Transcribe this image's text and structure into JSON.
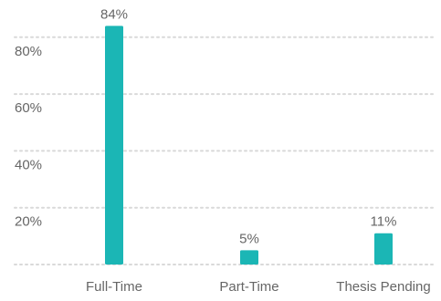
{
  "chart_data": {
    "type": "bar",
    "categories": [
      "Full-Time",
      "Part-Time",
      "Thesis Pending"
    ],
    "values": [
      84,
      5,
      11
    ],
    "value_labels": [
      "84%",
      "5%",
      "11%"
    ],
    "yticks": [
      20,
      40,
      60,
      80
    ],
    "ytick_labels": [
      "20%",
      "40%",
      "60%",
      "80%"
    ],
    "ylim": [
      0,
      100
    ],
    "grid": true,
    "legend": "none",
    "colors": {
      "bar": "#1BB6B5",
      "grid": "#d9d9d9",
      "text": "#666666"
    }
  }
}
